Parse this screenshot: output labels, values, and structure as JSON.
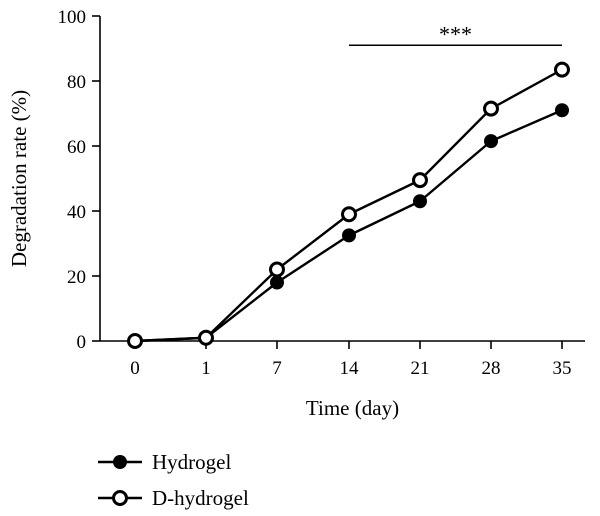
{
  "chart_data": {
    "type": "line",
    "xlabel": "Time (day)",
    "ylabel": "Degradation rate (%)",
    "categories": [
      "0",
      "1",
      "7",
      "14",
      "21",
      "28",
      "35"
    ],
    "ylim": [
      0,
      100
    ],
    "yticks": [
      0,
      20,
      40,
      60,
      80,
      100
    ],
    "grid": false,
    "legend_position": "bottom-left",
    "series": [
      {
        "name": "Hydrogel",
        "marker": "filled-circle",
        "values": [
          0,
          1,
          18,
          32.5,
          43,
          61.5,
          71
        ]
      },
      {
        "name": "D-hydrogel",
        "marker": "open-circle",
        "values": [
          0,
          1,
          22,
          39,
          49.5,
          71.5,
          83.5
        ]
      }
    ],
    "annotations": [
      {
        "text": "***",
        "type": "significance-bar",
        "from_category": "14",
        "to_category": "35",
        "y": 91
      }
    ]
  }
}
